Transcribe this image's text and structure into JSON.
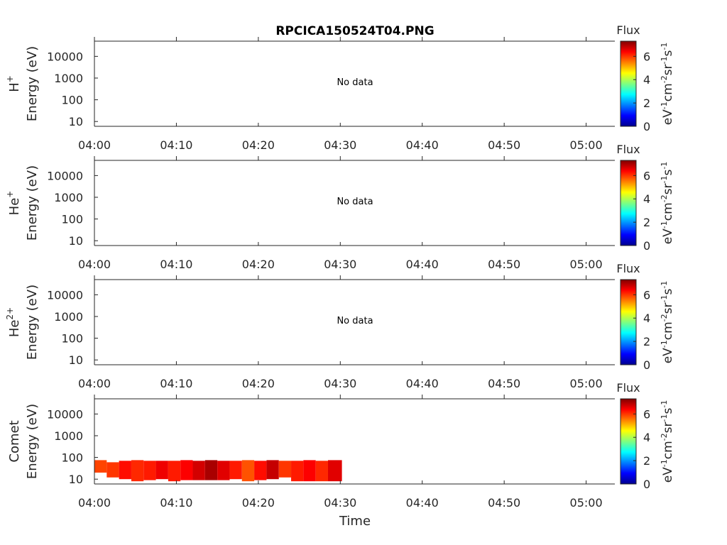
{
  "figure": {
    "title": "RPCICA150524T04.PNG",
    "xlabel": "Time"
  },
  "chart_data": [
    {
      "type": "heatmap",
      "ion_label": [
        "H",
        "+"
      ],
      "ylabel": "Energy (eV)",
      "status_text": "No data",
      "x_ticks": [
        "04:00",
        "04:10",
        "04:20",
        "04:30",
        "04:40",
        "04:50",
        "05:00"
      ],
      "xlim_minutes": [
        0,
        63.5
      ],
      "y_ticks": [
        "10",
        "100",
        "1000",
        "10000"
      ],
      "y_scale": "log",
      "ylim": [
        6,
        50000
      ],
      "colorbar": {
        "label": "Flux",
        "unit": "eV-1cm-2sr-1s-1",
        "ticks": [
          "0",
          "2",
          "4",
          "6"
        ],
        "range": [
          0,
          7.3
        ]
      },
      "cells": []
    },
    {
      "type": "heatmap",
      "ion_label": [
        "He",
        "+"
      ],
      "ylabel": "Energy (eV)",
      "status_text": "No data",
      "x_ticks": [
        "04:00",
        "04:10",
        "04:20",
        "04:30",
        "04:40",
        "04:50",
        "05:00"
      ],
      "xlim_minutes": [
        0,
        63.5
      ],
      "y_ticks": [
        "10",
        "100",
        "1000",
        "10000"
      ],
      "y_scale": "log",
      "ylim": [
        6,
        50000
      ],
      "colorbar": {
        "label": "Flux",
        "unit": "eV-1cm-2sr-1s-1",
        "ticks": [
          "0",
          "2",
          "4",
          "6"
        ],
        "range": [
          0,
          7.3
        ]
      },
      "cells": []
    },
    {
      "type": "heatmap",
      "ion_label": [
        "He",
        "2+"
      ],
      "ylabel": "Energy (eV)",
      "status_text": "No data",
      "x_ticks": [
        "04:00",
        "04:10",
        "04:20",
        "04:30",
        "04:40",
        "04:50",
        "05:00"
      ],
      "xlim_minutes": [
        0,
        63.5
      ],
      "y_ticks": [
        "10",
        "100",
        "1000",
        "10000"
      ],
      "y_scale": "log",
      "ylim": [
        6,
        50000
      ],
      "colorbar": {
        "label": "Flux",
        "unit": "eV-1cm-2sr-1s-1",
        "ticks": [
          "0",
          "2",
          "4",
          "6"
        ],
        "range": [
          0,
          7.3
        ]
      },
      "cells": []
    },
    {
      "type": "heatmap",
      "ion_label": [
        "Comet",
        ""
      ],
      "ylabel": "Energy (eV)",
      "status_text": "",
      "x_ticks": [
        "04:00",
        "04:10",
        "04:20",
        "04:30",
        "04:40",
        "04:50",
        "05:00"
      ],
      "xlim_minutes": [
        0,
        63.5
      ],
      "y_ticks": [
        "10",
        "100",
        "1000",
        "10000"
      ],
      "y_scale": "log",
      "ylim": [
        6,
        50000
      ],
      "colorbar": {
        "label": "Flux",
        "unit": "eV-1cm-2sr-1s-1",
        "ticks": [
          "0",
          "2",
          "4",
          "6"
        ],
        "range": [
          0,
          7.3
        ]
      },
      "cells_columns": [
        "t_start_min",
        "t_end_min",
        "e_low_eV",
        "e_high_eV",
        "flux"
      ],
      "cells": [
        [
          0.0,
          1.5,
          20,
          75,
          5.9
        ],
        [
          1.5,
          3.0,
          12,
          60,
          6.0
        ],
        [
          3.0,
          4.5,
          10,
          70,
          6.3
        ],
        [
          4.5,
          6.0,
          8,
          75,
          6.1
        ],
        [
          6.0,
          7.5,
          9,
          70,
          6.2
        ],
        [
          7.5,
          9.0,
          10,
          70,
          6.5
        ],
        [
          9.0,
          10.5,
          8,
          70,
          6.2
        ],
        [
          10.5,
          12.0,
          9,
          75,
          6.4
        ],
        [
          12.0,
          13.5,
          9,
          70,
          6.7
        ],
        [
          13.5,
          15.0,
          9,
          75,
          7.0
        ],
        [
          15.0,
          16.5,
          9,
          70,
          6.6
        ],
        [
          16.5,
          18.0,
          10,
          70,
          6.2
        ],
        [
          18.0,
          19.5,
          8,
          75,
          5.8
        ],
        [
          19.5,
          21.0,
          9,
          70,
          6.3
        ],
        [
          21.0,
          22.5,
          10,
          75,
          6.8
        ],
        [
          22.5,
          24.0,
          12,
          70,
          6.0
        ],
        [
          24.0,
          25.5,
          8,
          70,
          6.2
        ],
        [
          25.5,
          27.0,
          8,
          75,
          6.4
        ],
        [
          27.0,
          28.5,
          8,
          70,
          6.1
        ],
        [
          28.5,
          30.2,
          8,
          75,
          6.6
        ]
      ]
    }
  ]
}
